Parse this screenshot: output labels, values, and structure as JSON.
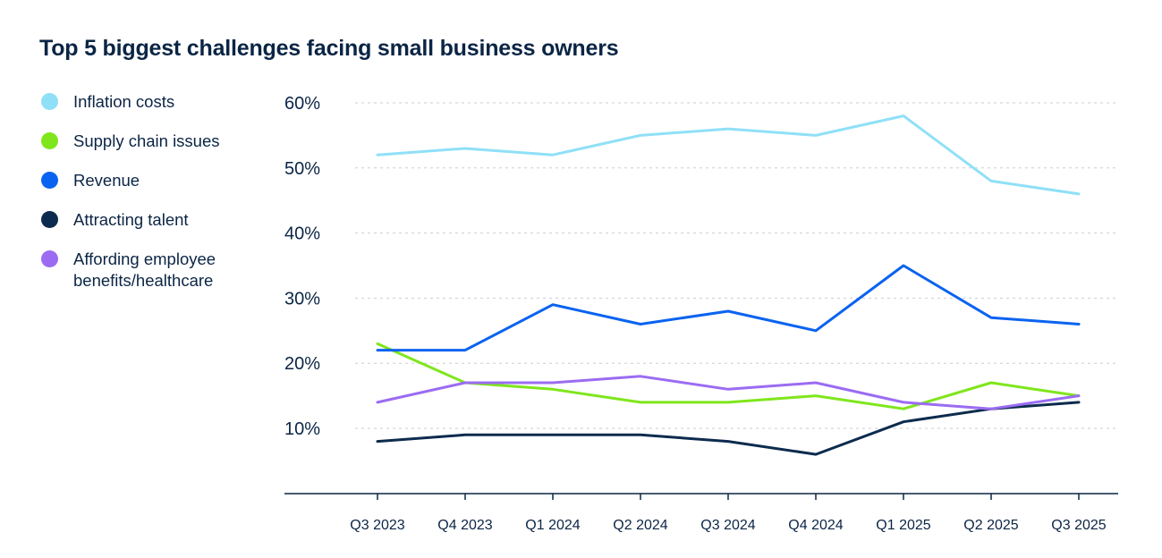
{
  "chart_data": {
    "type": "line",
    "title": "Top 5 biggest challenges facing small business owners",
    "xlabel": "",
    "ylabel": "",
    "categories": [
      "Q3 2023",
      "Q4 2023",
      "Q1 2024",
      "Q2 2024",
      "Q3 2024",
      "Q4 2024",
      "Q1 2025",
      "Q2 2025",
      "Q3 2025"
    ],
    "y_ticks": [
      "60%",
      "50%",
      "40%",
      "30%",
      "20%",
      "10%"
    ],
    "y_tick_values": [
      60,
      50,
      40,
      30,
      20,
      10
    ],
    "ylim": [
      0,
      60
    ],
    "grid": true,
    "legend_position": "left",
    "series": [
      {
        "name": "Inflation costs",
        "label_lines": [
          "Inflation costs"
        ],
        "color": "#8fe0f7",
        "values": [
          52,
          53,
          52,
          55,
          56,
          55,
          58,
          48,
          46
        ]
      },
      {
        "name": "Supply chain issues",
        "label_lines": [
          "Supply chain issues"
        ],
        "color": "#7fe61c",
        "values": [
          23,
          17,
          16,
          14,
          14,
          15,
          13,
          17,
          15
        ]
      },
      {
        "name": "Revenue",
        "label_lines": [
          "Revenue"
        ],
        "color": "#0a63f0",
        "values": [
          22,
          22,
          29,
          26,
          28,
          25,
          35,
          27,
          26
        ]
      },
      {
        "name": "Attracting talent",
        "label_lines": [
          "Attracting talent"
        ],
        "color": "#0d2b4e",
        "values": [
          8,
          9,
          9,
          9,
          8,
          6,
          11,
          13,
          14
        ]
      },
      {
        "name": "Affording employee benefits/healthcare",
        "label_lines": [
          "Affording employee",
          "benefits/healthcare"
        ],
        "color": "#9b6cf2",
        "values": [
          14,
          17,
          17,
          18,
          16,
          17,
          14,
          13,
          15
        ]
      }
    ]
  }
}
